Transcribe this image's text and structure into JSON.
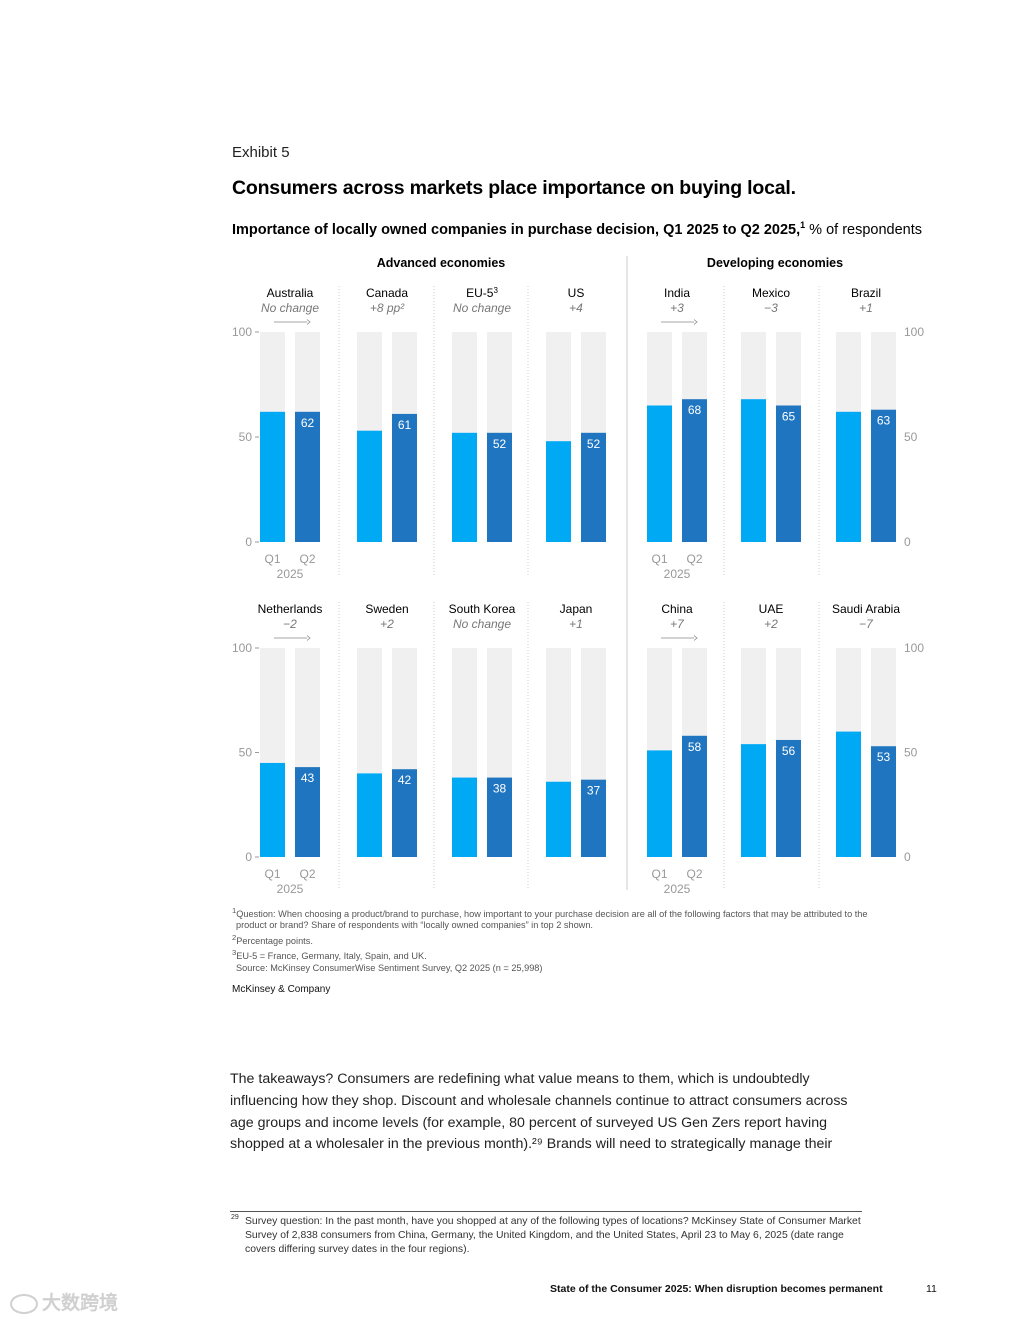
{
  "exhibit": {
    "label": "Exhibit 5",
    "title": "Consumers across markets place importance on buying local.",
    "subtitle_bold": "Importance of locally owned companies in purchase decision, Q1 2025 to Q2 2025,",
    "subtitle_sup": "1",
    "subtitle_unit": " % of respondents"
  },
  "colors": {
    "q1": "#00a9f4",
    "q2": "#1f75c0",
    "track": "#f0f0f0",
    "axis": "#999999",
    "divider": "#cccccc"
  },
  "chart_data": {
    "type": "bar",
    "title": "Importance of locally owned companies in purchase decision, Q1 2025 to Q2 2025",
    "ylabel": "% of respondents",
    "ylim": [
      0,
      100
    ],
    "yticks": [
      0,
      50,
      100
    ],
    "series_names": [
      "Q1",
      "Q2"
    ],
    "year_label": "2025",
    "group_labels": [
      "Advanced economies",
      "Developing economies"
    ],
    "rows": [
      {
        "markets": [
          {
            "name": "Australia",
            "sup": "",
            "change": "No change",
            "group": "Advanced economies",
            "q1": 62,
            "q2": 62
          },
          {
            "name": "Canada",
            "sup": "",
            "change": "+8 pp²",
            "group": "Advanced economies",
            "q1": 53,
            "q2": 61
          },
          {
            "name": "EU-5",
            "sup": "3",
            "change": "No change",
            "group": "Advanced economies",
            "q1": 52,
            "q2": 52
          },
          {
            "name": "US",
            "sup": "",
            "change": "+4",
            "group": "Advanced economies",
            "q1": 48,
            "q2": 52
          },
          {
            "name": "India",
            "sup": "",
            "change": "+3",
            "group": "Developing economies",
            "q1": 65,
            "q2": 68
          },
          {
            "name": "Mexico",
            "sup": "",
            "change": "−3",
            "group": "Developing economies",
            "q1": 68,
            "q2": 65
          },
          {
            "name": "Brazil",
            "sup": "",
            "change": "+1",
            "group": "Developing economies",
            "q1": 62,
            "q2": 63
          }
        ]
      },
      {
        "markets": [
          {
            "name": "Netherlands",
            "sup": "",
            "change": "−2",
            "group": "Advanced economies",
            "q1": 45,
            "q2": 43
          },
          {
            "name": "Sweden",
            "sup": "",
            "change": "+2",
            "group": "Advanced economies",
            "q1": 40,
            "q2": 42
          },
          {
            "name": "South Korea",
            "sup": "",
            "change": "No change",
            "group": "Advanced economies",
            "q1": 38,
            "q2": 38
          },
          {
            "name": "Japan",
            "sup": "",
            "change": "+1",
            "group": "Advanced economies",
            "q1": 36,
            "q2": 37
          },
          {
            "name": "China",
            "sup": "",
            "change": "+7",
            "group": "Developing economies",
            "q1": 51,
            "q2": 58
          },
          {
            "name": "UAE",
            "sup": "",
            "change": "+2",
            "group": "Developing economies",
            "q1": 54,
            "q2": 56
          },
          {
            "name": "Saudi Arabia",
            "sup": "",
            "change": "−7",
            "group": "Developing economies",
            "q1": 60,
            "q2": 53
          }
        ]
      }
    ]
  },
  "footnotes": [
    {
      "sup": "1",
      "text": "Question: When choosing a product/brand to purchase, how important to your purchase decision are all of the following factors that may be attributed to the"
    },
    {
      "sup": "",
      "text": "product or brand? Share of respondents with “locally owned companies” in top 2 shown."
    },
    {
      "sup": "2",
      "text": "Percentage points."
    },
    {
      "sup": "3",
      "text": "EU-5 = France, Germany, Italy, Spain, and UK."
    },
    {
      "sup": "",
      "text": "Source: McKinsey ConsumerWise Sentiment Survey, Q2 2025 (n = 25,998)"
    }
  ],
  "brand": "McKinsey & Company",
  "body_text": "The takeaways? Consumers are redefining what value means to them, which is undoubtedly influencing how they shop. Discount and wholesale channels continue to attract consumers across age groups and income levels (for example, 80 percent of surveyed US Gen Zers report having shopped at a wholesaler in the previous month).²⁹ Brands will need to strategically manage their",
  "reference": {
    "number": "29",
    "text": "Survey question: In the past month, have you shopped at any of the following types of locations? McKinsey State of Consumer Market Survey of 2,838 consumers from China, Germany, the United Kingdom, and the United States, April 23 to May 6, 2025 (date range covers differing survey dates in the four regions)."
  },
  "footer": {
    "title": "State of the Consumer 2025: When disruption becomes permanent",
    "page": "11"
  },
  "watermark": "大数跨境"
}
